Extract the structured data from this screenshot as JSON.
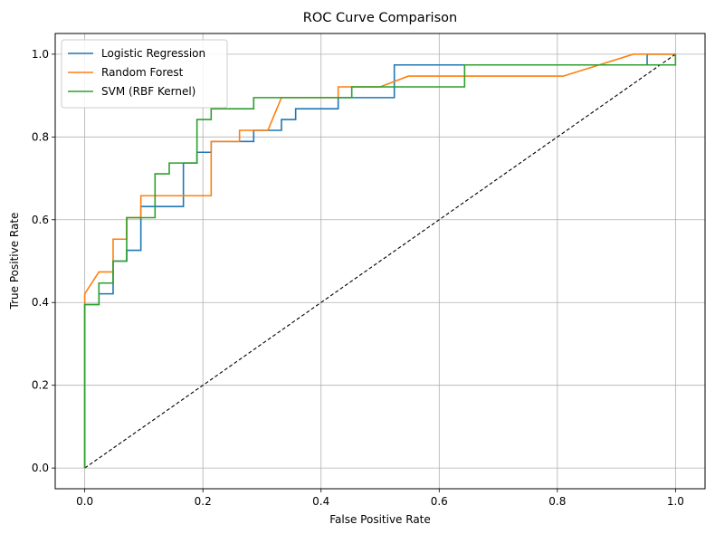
{
  "chart_data": {
    "type": "line",
    "title": "ROC Curve Comparison",
    "xlabel": "False Positive Rate",
    "ylabel": "True Positive Rate",
    "xlim": [
      -0.05,
      1.05
    ],
    "ylim": [
      -0.05,
      1.05
    ],
    "xticks": [
      0.0,
      0.2,
      0.4,
      0.6,
      0.8,
      1.0
    ],
    "yticks": [
      0.0,
      0.2,
      0.4,
      0.6,
      0.8,
      1.0
    ],
    "xtick_labels": [
      "0.0",
      "0.2",
      "0.4",
      "0.6",
      "0.8",
      "1.0"
    ],
    "ytick_labels": [
      "0.0",
      "0.2",
      "0.4",
      "0.6",
      "0.8",
      "1.0"
    ],
    "grid": true,
    "legend_position": "top-left",
    "series": [
      {
        "name": "Logistic Regression",
        "color": "#1f77b4",
        "points": [
          [
            0,
            0
          ],
          [
            0,
            0.395
          ],
          [
            0.024,
            0.395
          ],
          [
            0.024,
            0.421
          ],
          [
            0.048,
            0.421
          ],
          [
            0.048,
            0.5
          ],
          [
            0.071,
            0.5
          ],
          [
            0.071,
            0.526
          ],
          [
            0.095,
            0.526
          ],
          [
            0.095,
            0.632
          ],
          [
            0.167,
            0.632
          ],
          [
            0.167,
            0.737
          ],
          [
            0.19,
            0.737
          ],
          [
            0.19,
            0.763
          ],
          [
            0.214,
            0.763
          ],
          [
            0.214,
            0.789
          ],
          [
            0.286,
            0.789
          ],
          [
            0.286,
            0.816
          ],
          [
            0.333,
            0.816
          ],
          [
            0.333,
            0.842
          ],
          [
            0.357,
            0.842
          ],
          [
            0.357,
            0.868
          ],
          [
            0.429,
            0.868
          ],
          [
            0.429,
            0.895
          ],
          [
            0.524,
            0.895
          ],
          [
            0.524,
            0.974
          ],
          [
            0.952,
            0.974
          ],
          [
            0.952,
            1.0
          ],
          [
            1.0,
            1.0
          ]
        ]
      },
      {
        "name": "Random Forest",
        "color": "#ff7f0e",
        "points": [
          [
            0,
            0
          ],
          [
            0,
            0.421
          ],
          [
            0.024,
            0.474
          ],
          [
            0.048,
            0.474
          ],
          [
            0.048,
            0.553
          ],
          [
            0.071,
            0.553
          ],
          [
            0.071,
            0.605
          ],
          [
            0.095,
            0.605
          ],
          [
            0.095,
            0.658
          ],
          [
            0.214,
            0.658
          ],
          [
            0.214,
            0.789
          ],
          [
            0.262,
            0.789
          ],
          [
            0.262,
            0.816
          ],
          [
            0.31,
            0.816
          ],
          [
            0.333,
            0.895
          ],
          [
            0.429,
            0.895
          ],
          [
            0.429,
            0.921
          ],
          [
            0.5,
            0.921
          ],
          [
            0.548,
            0.947
          ],
          [
            0.81,
            0.947
          ],
          [
            0.929,
            1.0
          ],
          [
            1.0,
            1.0
          ]
        ]
      },
      {
        "name": "SVM (RBF Kernel)",
        "color": "#2ca02c",
        "points": [
          [
            0,
            0
          ],
          [
            0,
            0.395
          ],
          [
            0.024,
            0.395
          ],
          [
            0.024,
            0.447
          ],
          [
            0.048,
            0.447
          ],
          [
            0.048,
            0.5
          ],
          [
            0.071,
            0.5
          ],
          [
            0.071,
            0.605
          ],
          [
            0.119,
            0.605
          ],
          [
            0.119,
            0.711
          ],
          [
            0.143,
            0.711
          ],
          [
            0.143,
            0.737
          ],
          [
            0.19,
            0.737
          ],
          [
            0.19,
            0.842
          ],
          [
            0.214,
            0.842
          ],
          [
            0.214,
            0.868
          ],
          [
            0.286,
            0.868
          ],
          [
            0.286,
            0.895
          ],
          [
            0.452,
            0.895
          ],
          [
            0.452,
            0.921
          ],
          [
            0.643,
            0.921
          ],
          [
            0.643,
            0.974
          ],
          [
            1.0,
            0.974
          ],
          [
            1.0,
            1.0
          ]
        ]
      }
    ],
    "reference_line": {
      "style": "dashed",
      "color": "#000000",
      "points": [
        [
          0,
          0
        ],
        [
          1,
          1
        ]
      ]
    }
  }
}
